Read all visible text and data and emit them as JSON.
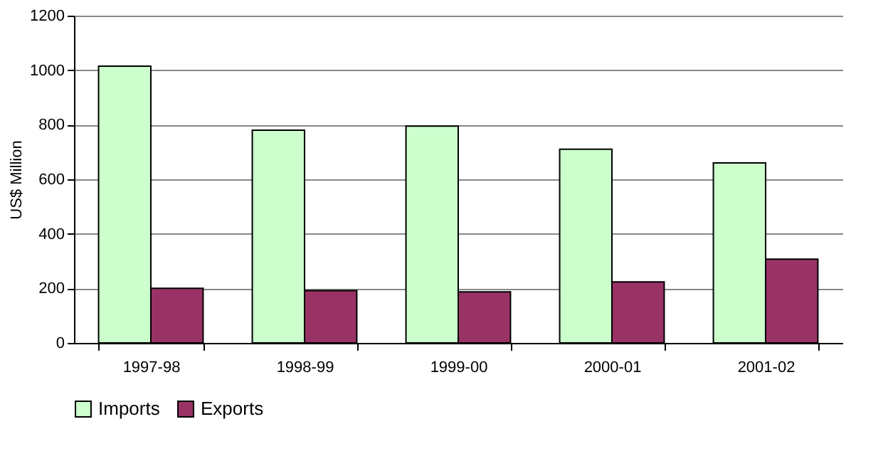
{
  "chart_data": {
    "type": "bar",
    "ylabel": "US$ Million",
    "categories": [
      "1997-98",
      "1998-99",
      "1999-00",
      "2000-01",
      "2001-02"
    ],
    "series": [
      {
        "name": "Imports",
        "color": "#ccffcc",
        "values": [
          1015,
          780,
          795,
          710,
          660
        ]
      },
      {
        "name": "Exports",
        "color": "#993366",
        "values": [
          200,
          192,
          187,
          224,
          307
        ]
      }
    ],
    "ylim": [
      0,
      1200
    ],
    "yticks": [
      0,
      200,
      400,
      600,
      800,
      1000,
      1200
    ],
    "grid": "y",
    "legend": "bottom"
  }
}
